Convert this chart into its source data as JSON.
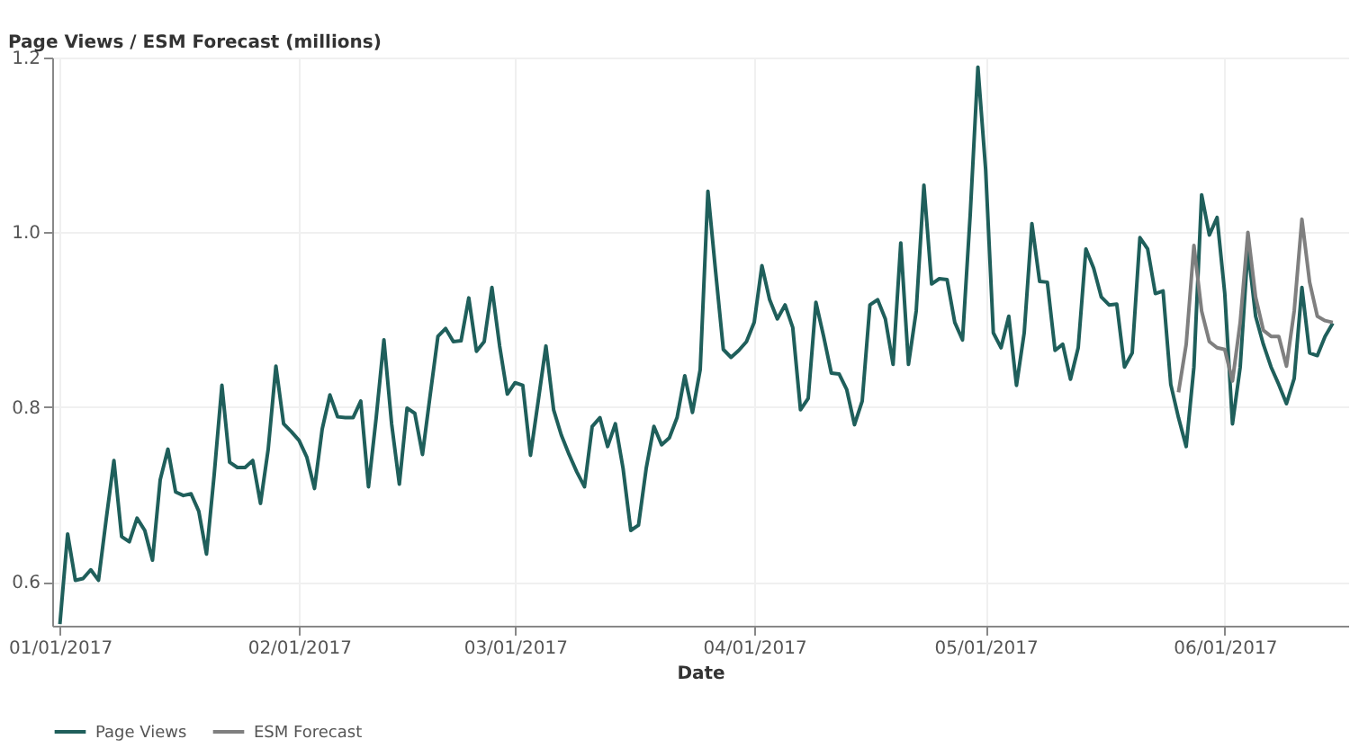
{
  "chart_data": {
    "type": "line",
    "ylabel": "Page Views / ESM Forecast (millions)",
    "xlabel": "Date",
    "xlim": [
      "2016-12-31",
      "2017-06-17"
    ],
    "xticks": [
      {
        "value": "2017-01-01",
        "label": "01/01/2017"
      },
      {
        "value": "2017-02-01",
        "label": "02/01/2017"
      },
      {
        "value": "2017-03-01",
        "label": "03/01/2017"
      },
      {
        "value": "2017-04-01",
        "label": "04/01/2017"
      },
      {
        "value": "2017-05-01",
        "label": "05/01/2017"
      },
      {
        "value": "2017-06-01",
        "label": "06/01/2017"
      }
    ],
    "ylim": [
      0.55,
      1.2
    ],
    "yticks": [
      0.6,
      0.8,
      {
        "value": 1.0,
        "label": "1.0"
      },
      1.2
    ],
    "grid": true,
    "legend": "bottom",
    "marker": "none",
    "line_style": "solid",
    "x": [
      "2017-01-01",
      "2017-01-02",
      "2017-01-03",
      "2017-01-04",
      "2017-01-05",
      "2017-01-06",
      "2017-01-07",
      "2017-01-08",
      "2017-01-09",
      "2017-01-10",
      "2017-01-11",
      "2017-01-12",
      "2017-01-13",
      "2017-01-14",
      "2017-01-15",
      "2017-01-16",
      "2017-01-17",
      "2017-01-18",
      "2017-01-19",
      "2017-01-20",
      "2017-01-21",
      "2017-01-22",
      "2017-01-23",
      "2017-01-24",
      "2017-01-25",
      "2017-01-26",
      "2017-01-27",
      "2017-01-28",
      "2017-01-29",
      "2017-01-30",
      "2017-01-31",
      "2017-02-01",
      "2017-02-02",
      "2017-02-03",
      "2017-02-04",
      "2017-02-05",
      "2017-02-06",
      "2017-02-07",
      "2017-02-08",
      "2017-02-09",
      "2017-02-10",
      "2017-02-11",
      "2017-02-12",
      "2017-02-13",
      "2017-02-14",
      "2017-02-15",
      "2017-02-16",
      "2017-02-17",
      "2017-02-18",
      "2017-02-19",
      "2017-02-20",
      "2017-02-21",
      "2017-02-22",
      "2017-02-23",
      "2017-02-24",
      "2017-02-25",
      "2017-02-26",
      "2017-02-27",
      "2017-02-28",
      "2017-03-01",
      "2017-03-02",
      "2017-03-03",
      "2017-03-04",
      "2017-03-05",
      "2017-03-06",
      "2017-03-07",
      "2017-03-08",
      "2017-03-09",
      "2017-03-10",
      "2017-03-11",
      "2017-03-12",
      "2017-03-13",
      "2017-03-14",
      "2017-03-15",
      "2017-03-16",
      "2017-03-17",
      "2017-03-18",
      "2017-03-19",
      "2017-03-20",
      "2017-03-21",
      "2017-03-22",
      "2017-03-23",
      "2017-03-24",
      "2017-03-25",
      "2017-03-26",
      "2017-03-27",
      "2017-03-28",
      "2017-03-29",
      "2017-03-30",
      "2017-03-31",
      "2017-04-01",
      "2017-04-02",
      "2017-04-03",
      "2017-04-04",
      "2017-04-05",
      "2017-04-06",
      "2017-04-07",
      "2017-04-08",
      "2017-04-09",
      "2017-04-10",
      "2017-04-11",
      "2017-04-12",
      "2017-04-13",
      "2017-04-14",
      "2017-04-15",
      "2017-04-16",
      "2017-04-17",
      "2017-04-18",
      "2017-04-19",
      "2017-04-20",
      "2017-04-21",
      "2017-04-22",
      "2017-04-23",
      "2017-04-24",
      "2017-04-25",
      "2017-04-26",
      "2017-04-27",
      "2017-04-28",
      "2017-04-29",
      "2017-04-30",
      "2017-05-01",
      "2017-05-02",
      "2017-05-03",
      "2017-05-04",
      "2017-05-05",
      "2017-05-06",
      "2017-05-07",
      "2017-05-08",
      "2017-05-09",
      "2017-05-10",
      "2017-05-11",
      "2017-05-12",
      "2017-05-13",
      "2017-05-14",
      "2017-05-15",
      "2017-05-16",
      "2017-05-17",
      "2017-05-18",
      "2017-05-19",
      "2017-05-20",
      "2017-05-21",
      "2017-05-22",
      "2017-05-23",
      "2017-05-24",
      "2017-05-25",
      "2017-05-26",
      "2017-05-27",
      "2017-05-28",
      "2017-05-29",
      "2017-05-30",
      "2017-05-31",
      "2017-06-01",
      "2017-06-02",
      "2017-06-03",
      "2017-06-04",
      "2017-06-05",
      "2017-06-06",
      "2017-06-07",
      "2017-06-08",
      "2017-06-09",
      "2017-06-10",
      "2017-06-11",
      "2017-06-12",
      "2017-06-13",
      "2017-06-14",
      "2017-06-15"
    ],
    "series": [
      {
        "name": "Page Views",
        "color": "#1f5f5b",
        "values": [
          0.552,
          0.655,
          0.602,
          0.604,
          0.614,
          0.602,
          0.672,
          0.739,
          0.652,
          0.646,
          0.673,
          0.659,
          0.625,
          0.717,
          0.752,
          0.703,
          0.699,
          0.701,
          0.681,
          0.632,
          0.723,
          0.825,
          0.737,
          0.731,
          0.731,
          0.739,
          0.69,
          0.752,
          0.847,
          0.781,
          0.772,
          0.762,
          0.743,
          0.707,
          0.775,
          0.814,
          0.789,
          0.788,
          0.788,
          0.807,
          0.709,
          0.788,
          0.877,
          0.781,
          0.712,
          0.799,
          0.793,
          0.746,
          0.814,
          0.881,
          0.89,
          0.875,
          0.876,
          0.925,
          0.864,
          0.875,
          0.937,
          0.87,
          0.815,
          0.828,
          0.825,
          0.745,
          0.807,
          0.87,
          0.797,
          0.768,
          0.746,
          0.726,
          0.709,
          0.778,
          0.788,
          0.755,
          0.781,
          0.73,
          0.659,
          0.665,
          0.73,
          0.778,
          0.757,
          0.765,
          0.788,
          0.836,
          0.794,
          0.843,
          1.047,
          0.955,
          0.866,
          0.857,
          0.865,
          0.875,
          0.897,
          0.962,
          0.923,
          0.901,
          0.917,
          0.891,
          0.797,
          0.81,
          0.92,
          0.881,
          0.839,
          0.838,
          0.82,
          0.78,
          0.807,
          0.917,
          0.923,
          0.901,
          0.849,
          0.988,
          0.849,
          0.91,
          1.054,
          0.941,
          0.947,
          0.946,
          0.897,
          0.877,
          1.02,
          1.189,
          1.072,
          0.885,
          0.868,
          0.904,
          0.825,
          0.885,
          1.01,
          0.944,
          0.943,
          0.865,
          0.872,
          0.832,
          0.868,
          0.981,
          0.959,
          0.926,
          0.917,
          0.918,
          0.846,
          0.862,
          0.994,
          0.981,
          0.93,
          0.933,
          0.826,
          0.788,
          0.755,
          0.846,
          1.043,
          0.997,
          1.017,
          0.93,
          0.781,
          0.846,
          0.981,
          0.904,
          0.872,
          0.846,
          0.826,
          0.804,
          0.833,
          0.937,
          0.862,
          0.859,
          0.881,
          0.896
        ]
      },
      {
        "name": "ESM Forecast",
        "color": "#7f7f7f",
        "x": [
          "2017-05-26",
          "2017-05-27",
          "2017-05-28",
          "2017-05-29",
          "2017-05-30",
          "2017-05-31",
          "2017-06-01",
          "2017-06-02",
          "2017-06-03",
          "2017-06-04",
          "2017-06-05",
          "2017-06-06",
          "2017-06-07",
          "2017-06-08",
          "2017-06-09",
          "2017-06-10",
          "2017-06-11",
          "2017-06-12",
          "2017-06-13",
          "2017-06-14",
          "2017-06-15"
        ],
        "values": [
          0.817,
          0.872,
          0.985,
          0.91,
          0.875,
          0.868,
          0.866,
          0.83,
          0.897,
          1.0,
          0.926,
          0.888,
          0.881,
          0.881,
          0.847,
          0.91,
          1.015,
          0.943,
          0.904,
          0.899,
          0.897
        ]
      }
    ]
  }
}
